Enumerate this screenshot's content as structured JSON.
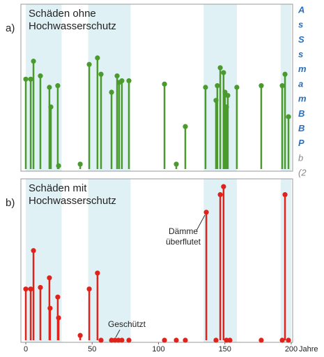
{
  "chart_data": [
    {
      "type": "stem",
      "panel_label": "a)",
      "title_lines": [
        "Schäden ohne",
        "Hochwasserschutz"
      ],
      "color": "#4a9a2c",
      "band_color": "#dff1f5",
      "shaded_ranges": [
        [
          0,
          27
        ],
        [
          47,
          79
        ],
        [
          134,
          159
        ],
        [
          192,
          200
        ]
      ],
      "xlim": [
        0,
        200
      ],
      "ylim": [
        0,
        100
      ],
      "x": [
        0,
        3.7,
        5.8,
        11,
        17.8,
        18.9,
        24.1,
        24.7,
        41,
        47.8,
        54,
        56.7,
        64.6,
        68.8,
        70.3,
        72.4,
        77.7,
        104.5,
        113.4,
        120.2,
        135.4,
        143.3,
        144.3,
        146.5,
        149,
        150.1,
        151.2,
        152.2,
        159,
        177.4,
        193.2,
        195.3,
        197.9
      ],
      "values": [
        55,
        55,
        66,
        57,
        50,
        38,
        51,
        2,
        3,
        64,
        68,
        58,
        47,
        57,
        53,
        54,
        54,
        52,
        3,
        26,
        50,
        42,
        51,
        62,
        59,
        47,
        38,
        45,
        50,
        51,
        51,
        58,
        32
      ]
    },
    {
      "type": "stem",
      "panel_label": "b)",
      "title_lines": [
        "Schäden mit",
        "Hochwasserschutz"
      ],
      "color": "#e0221b",
      "band_color": "#dff1f5",
      "shaded_ranges": [
        [
          0,
          27
        ],
        [
          47,
          79
        ],
        [
          134,
          159
        ],
        [
          192,
          200
        ]
      ],
      "xlim": [
        0,
        200
      ],
      "ylim": [
        0,
        100
      ],
      "xticks": [
        0,
        50,
        100,
        150,
        200
      ],
      "xlabel": "Jahre",
      "x": [
        0,
        3.7,
        5.8,
        11,
        17.8,
        18.3,
        24.1,
        24.7,
        41,
        47.8,
        54,
        56.7,
        64.6,
        67.2,
        69.8,
        72.4,
        77.7,
        104.5,
        113.4,
        120.2,
        136,
        143.3,
        146.5,
        149,
        151.2,
        153.8,
        177.4,
        193.2,
        195.3,
        197.9
      ],
      "values": [
        32,
        32,
        56,
        33,
        39,
        20,
        27,
        14,
        3,
        32,
        42,
        0,
        0,
        0,
        0,
        0,
        0,
        0,
        0,
        0,
        80,
        0,
        91,
        96,
        0,
        0,
        0,
        0,
        91,
        0
      ],
      "annotations": [
        {
          "lines": [
            "Dämme",
            "überflutet"
          ]
        },
        {
          "lines": [
            "Geschützt"
          ]
        }
      ]
    }
  ],
  "side_text": {
    "bold_lines": [
      "A",
      "s",
      "S",
      "s",
      "m",
      "a",
      "m",
      "B",
      "B",
      "P"
    ],
    "plain_lines": [
      "b",
      "(2"
    ]
  }
}
